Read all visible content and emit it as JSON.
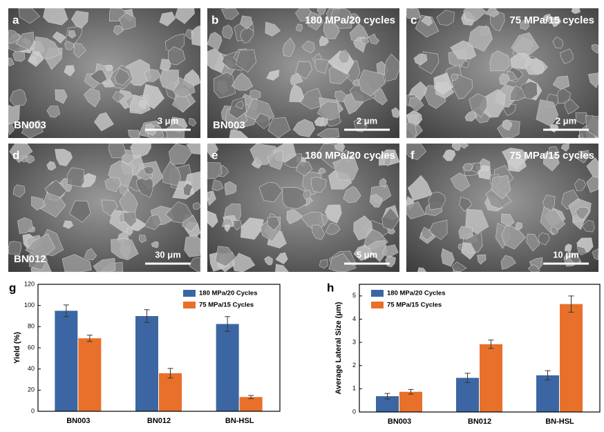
{
  "panels": [
    {
      "letter": "a",
      "sample": "BN003",
      "scale": "3 μm"
    },
    {
      "letter": "b",
      "condition": "180 MPa/20 cycles",
      "sample": "BN003",
      "scale": "2 μm"
    },
    {
      "letter": "c",
      "condition": "75 MPa/15 cycles",
      "scale": "2 μm"
    },
    {
      "letter": "d",
      "sample": "BN012",
      "scale": "30 μm"
    },
    {
      "letter": "e",
      "condition": "180 MPa/20 cycles",
      "scale": "5 μm"
    },
    {
      "letter": "f",
      "condition": "75 MPa/15 cycles",
      "scale": "10 μm"
    }
  ],
  "chart_data": [
    {
      "type": "bar",
      "label": "g",
      "y_label": "Yield (%)",
      "categories": [
        "BN003",
        "BN012",
        "BN-HSL"
      ],
      "series": [
        {
          "name": "180 MPa/20 Cycles",
          "color": "#3b66a3",
          "values": [
            95,
            90,
            82.5
          ],
          "errors": [
            5.5,
            6,
            7
          ]
        },
        {
          "name": "75 MPa/15 Cycles",
          "color": "#e8702a",
          "values": [
            69,
            36,
            13.5
          ],
          "errors": [
            3,
            4.5,
            1.5
          ]
        }
      ],
      "ylim": [
        0,
        120
      ],
      "yticks": [
        0,
        20,
        40,
        60,
        80,
        100,
        120
      ]
    },
    {
      "type": "bar",
      "label": "h",
      "y_label": "Average  Lateral Size (μm)",
      "categories": [
        "BN003",
        "BN012",
        "BN-HSL"
      ],
      "series": [
        {
          "name": "180 MPa/20 Cycles",
          "color": "#3b66a3",
          "values": [
            0.68,
            1.47,
            1.58
          ],
          "errors": [
            0.12,
            0.2,
            0.2
          ]
        },
        {
          "name": "75 MPa/15 Cycles",
          "color": "#e8702a",
          "values": [
            0.87,
            2.92,
            4.65
          ],
          "errors": [
            0.1,
            0.18,
            0.35
          ]
        }
      ],
      "ylim": [
        0,
        5.5
      ],
      "yticks": [
        0,
        1,
        2,
        3,
        4,
        5
      ]
    }
  ]
}
